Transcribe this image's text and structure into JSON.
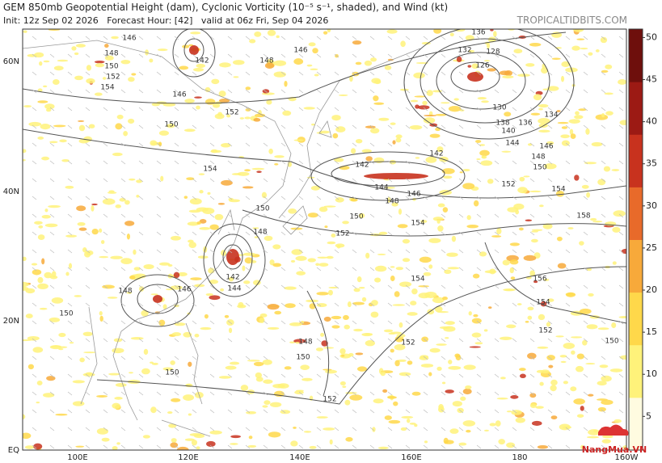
{
  "header": {
    "title": "GEM 850mb Geopotential Height (dam), Cyclonic Vorticity (10⁻⁵ s⁻¹, shaded), and Wind (kt)",
    "subtitle": "Init: 12z Sep 02 2026   Forecast Hour: [42]   valid at 06z Fri, Sep 04 2026",
    "site": "TROPICALTIDBITS.COM"
  },
  "map": {
    "lat_labels": [
      "60N",
      "40N",
      "20N",
      "EQ"
    ],
    "lon_labels": [
      "100E",
      "120E",
      "140E",
      "160E",
      "180",
      "160W"
    ],
    "contour_labels": [
      "146",
      "148",
      "150",
      "152",
      "154",
      "142",
      "146",
      "148",
      "146",
      "152",
      "150",
      "154",
      "150",
      "148",
      "142",
      "144",
      "146",
      "148",
      "150",
      "150",
      "150",
      "148",
      "152",
      "152",
      "154",
      "152",
      "150",
      "148",
      "146",
      "144",
      "142",
      "142",
      "154",
      "136",
      "132",
      "128",
      "126",
      "130",
      "134",
      "136",
      "138",
      "140",
      "144",
      "146",
      "148",
      "150",
      "152",
      "154",
      "158",
      "156",
      "154",
      "152",
      "150"
    ]
  },
  "colorbar": {
    "lim": [
      1,
      51
    ],
    "ticks": [
      5,
      10,
      15,
      20,
      25,
      30,
      35,
      40,
      45,
      50
    ],
    "colors": [
      "#fffbe0",
      "#fff27a",
      "#ffd84a",
      "#f7a93a",
      "#e86a2a",
      "#c8321e",
      "#9c1a14",
      "#6e0f0c"
    ]
  },
  "watermark": "NangMua.VN"
}
